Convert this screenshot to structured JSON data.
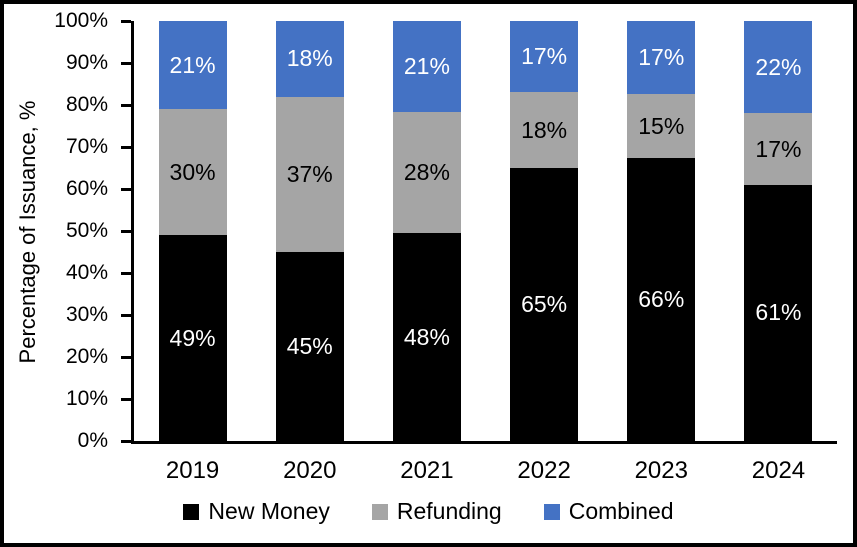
{
  "chart_data": {
    "type": "bar",
    "stacked": true,
    "percent_stacked": true,
    "ylabel": "Percentage of Issuance, %",
    "xlabel": "",
    "ylim": [
      0,
      100
    ],
    "ytick_step": 10,
    "value_suffix": "%",
    "grid": false,
    "legend_position": "bottom",
    "categories": [
      "2019",
      "2020",
      "2021",
      "2022",
      "2023",
      "2024"
    ],
    "series": [
      {
        "name": "New Money",
        "color": "#000000",
        "label_color": "#FFFFFF",
        "values": [
          49,
          45,
          48,
          65,
          66,
          61
        ]
      },
      {
        "name": "Refunding",
        "color": "#A5A5A5",
        "label_color": "#000000",
        "values": [
          30,
          37,
          28,
          18,
          15,
          17
        ]
      },
      {
        "name": "Combined",
        "color": "#4472C4",
        "label_color": "#FFFFFF",
        "values": [
          21,
          18,
          21,
          17,
          17,
          22
        ]
      }
    ]
  }
}
